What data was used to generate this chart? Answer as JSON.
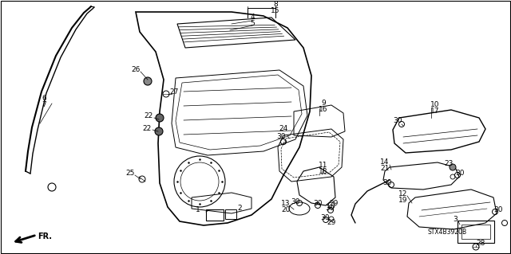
{
  "bg_color": "#ffffff",
  "diagram_code": "STX4B3920B",
  "line_color": "#000000",
  "gray_fill": "#d0d0d0"
}
